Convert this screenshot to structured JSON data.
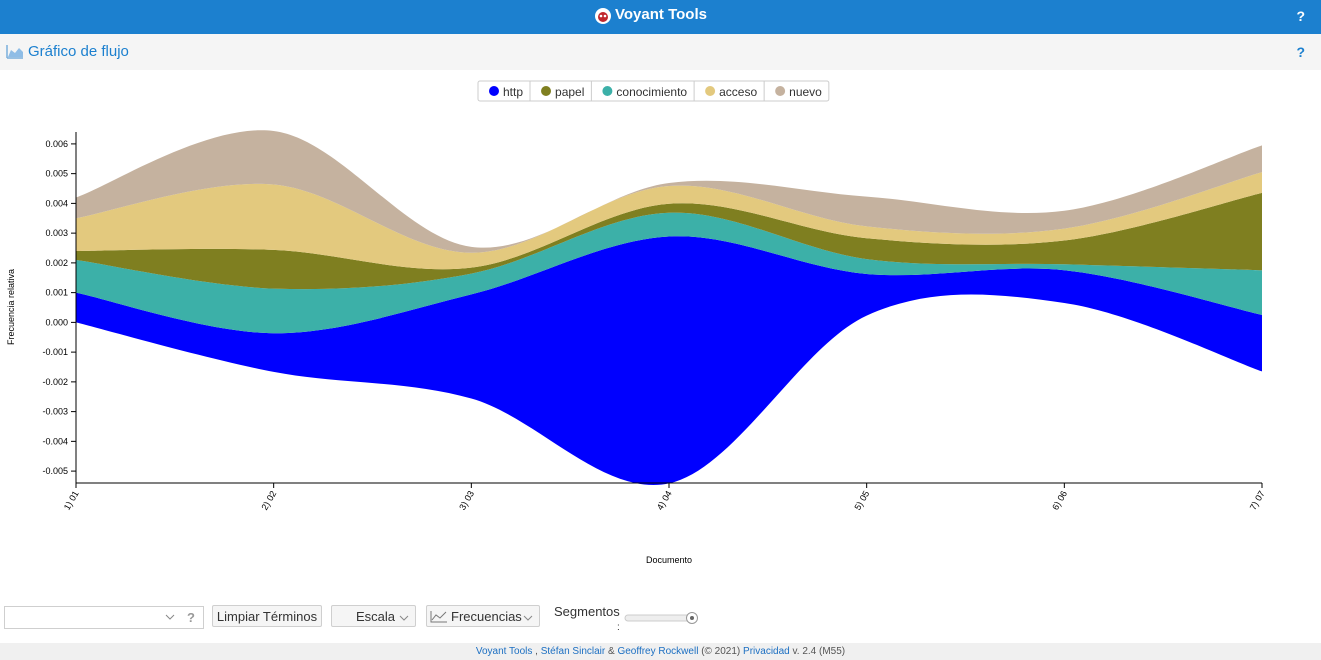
{
  "header": {
    "title": "Voyant Tools",
    "help": "?"
  },
  "panel": {
    "title": "Gráfico de flujo",
    "help": "?"
  },
  "chart_data": {
    "type": "streamgraph",
    "offset": "wiggle",
    "x_label": "Documento",
    "y_label": "Frecuencia relativa",
    "categories": [
      "1) 01",
      "2) 02",
      "3) 03",
      "4) 04",
      "5) 05",
      "6) 06",
      "7) 07"
    ],
    "series": [
      {
        "name": "http",
        "color": "#0000ff",
        "values": [
          0.001,
          0.0013,
          0.0035,
          0.0083,
          0.0014,
          0.0011,
          0.0019
        ]
      },
      {
        "name": "papel",
        "color": "#7f7f20",
        "values": [
          0.0003,
          0.0013,
          0.0002,
          0.0003,
          0.0007,
          0.0008,
          0.0026
        ]
      },
      {
        "name": "conocimiento",
        "color": "#3cb0a8",
        "values": [
          0.0011,
          0.0015,
          0.0007,
          0.0008,
          0.0005,
          0.0002,
          0.0015
        ]
      },
      {
        "name": "acceso",
        "color": "#e3c97e",
        "values": [
          0.0011,
          0.0022,
          0.0005,
          0.0006,
          0.0004,
          0.0004,
          0.0007
        ]
      },
      {
        "name": "nuevo",
        "color": "#c5b29f",
        "values": [
          0.0007,
          0.0018,
          0.0002,
          0.0001,
          0.001,
          0.0006,
          0.0009
        ]
      }
    ],
    "stack_order": [
      0,
      2,
      1,
      3,
      4
    ],
    "ylim": [
      -0.0054,
      0.0064
    ],
    "yticks": [
      -0.005,
      -0.004,
      -0.003,
      -0.002,
      -0.001,
      {
        "value": 0,
        "label": "0.000"
      },
      0.001,
      0.002,
      0.003,
      0.004,
      0.005,
      0.006
    ]
  },
  "toolbar": {
    "help": "?",
    "clear": "Limpiar Términos",
    "scale": "Escala",
    "freq": "Frecuencias",
    "segments": "Segmentos",
    "segments_colon": ":"
  },
  "footer": {
    "voyant": "Voyant Tools",
    "comma": ",",
    "author1": "Stéfan Sinclair",
    "amp": "&",
    "author2": "Geoffrey Rockwell",
    "copy": "(© 2021)",
    "privacy": "Privacidad",
    "version": "v. 2.4 (M55)"
  }
}
